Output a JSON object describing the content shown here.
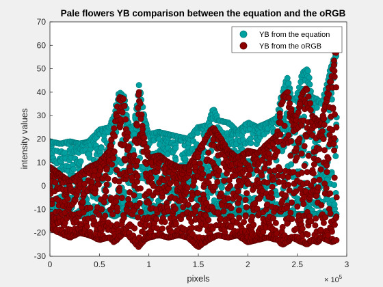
{
  "chart_data": {
    "type": "scatter",
    "title": "Pale flowers YB comparison between the equation and the oRGB",
    "xlabel": "pixels",
    "ylabel": "intensity values",
    "x_exponent_label": "× 10",
    "x_exponent_power": "5",
    "xlim": [
      0,
      3
    ],
    "ylim": [
      -30,
      70
    ],
    "x_ticks": [
      "0",
      "0.5",
      "1",
      "1.5",
      "2",
      "2.5",
      "3"
    ],
    "y_ticks": [
      "-30",
      "-20",
      "-10",
      "0",
      "10",
      "20",
      "30",
      "40",
      "50",
      "60",
      "70"
    ],
    "grid": false,
    "legend_position": "top-right",
    "series": [
      {
        "name": "YB from the equation",
        "color": "#00a0a0",
        "envelope": {
          "x": [
            0,
            0.1,
            0.2,
            0.3,
            0.4,
            0.5,
            0.6,
            0.65,
            0.7,
            0.75,
            0.8,
            0.85,
            0.9,
            0.95,
            1.0,
            1.1,
            1.2,
            1.3,
            1.4,
            1.5,
            1.6,
            1.65,
            1.7,
            1.8,
            1.9,
            2.0,
            2.1,
            2.2,
            2.3,
            2.35,
            2.4,
            2.45,
            2.5,
            2.55,
            2.6,
            2.65,
            2.7,
            2.75,
            2.8,
            2.85,
            2.9
          ],
          "upper": [
            19,
            18,
            19,
            18,
            19,
            24,
            25,
            30,
            40,
            38,
            25,
            25,
            43,
            30,
            22,
            23,
            22,
            21,
            20,
            25,
            26,
            33,
            28,
            27,
            23,
            27,
            25,
            27,
            29,
            40,
            46,
            37,
            38,
            48,
            50,
            38,
            37,
            35,
            44,
            52,
            57
          ],
          "lower": [
            -12,
            -12,
            -12,
            -13,
            -12,
            -12,
            -12,
            -13,
            -12,
            -12,
            -12,
            -13,
            -12,
            -12,
            -12,
            -12,
            -12,
            -12,
            -12,
            -12,
            -12,
            -12,
            -12,
            -12,
            -12,
            -12,
            -12,
            -12,
            -12,
            -12,
            -12,
            -12,
            -12,
            -12,
            -12,
            -12,
            -12,
            -12,
            -12,
            -12,
            -12
          ]
        }
      },
      {
        "name": "YB from the oRGB",
        "color": "#8b0000",
        "envelope": {
          "x": [
            0,
            0.1,
            0.2,
            0.3,
            0.4,
            0.5,
            0.6,
            0.65,
            0.7,
            0.75,
            0.8,
            0.85,
            0.9,
            0.95,
            1.0,
            1.1,
            1.2,
            1.3,
            1.4,
            1.5,
            1.6,
            1.65,
            1.7,
            1.8,
            1.9,
            2.0,
            2.1,
            2.2,
            2.3,
            2.35,
            2.4,
            2.45,
            2.5,
            2.55,
            2.6,
            2.65,
            2.7,
            2.75,
            2.8,
            2.85,
            2.9
          ],
          "upper": [
            8,
            5,
            2,
            5,
            8,
            10,
            15,
            25,
            38,
            37,
            13,
            12,
            40,
            20,
            12,
            13,
            10,
            8,
            8,
            15,
            22,
            25,
            22,
            15,
            12,
            15,
            14,
            18,
            22,
            38,
            40,
            30,
            30,
            39,
            42,
            30,
            28,
            28,
            38,
            48,
            63
          ],
          "lower": [
            -18,
            -20,
            -22,
            -20,
            -21,
            -23,
            -22,
            -24,
            -22,
            -20,
            -21,
            -24,
            -26,
            -23,
            -22,
            -21,
            -22,
            -21,
            -22,
            -26,
            -23,
            -22,
            -21,
            -22,
            -21,
            -24,
            -23,
            -22,
            -23,
            -25,
            -24,
            -22,
            -23,
            -24,
            -25,
            -23,
            -24,
            -22,
            -23,
            -24,
            -23
          ]
        }
      }
    ]
  }
}
